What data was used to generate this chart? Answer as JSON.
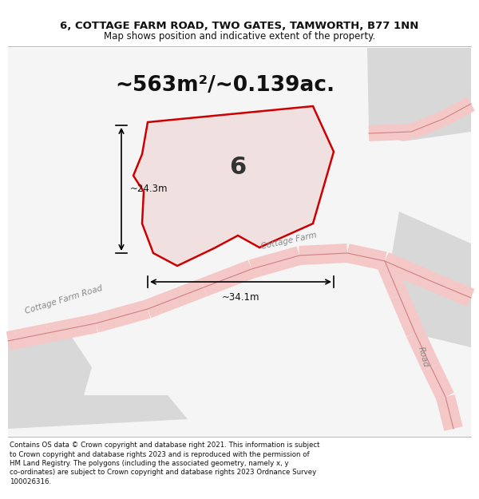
{
  "title_line1": "6, COTTAGE FARM ROAD, TWO GATES, TAMWORTH, B77 1NN",
  "title_line2": "Map shows position and indicative extent of the property.",
  "area_text": "~563m²/~0.139ac.",
  "footer_lines": [
    "Contains OS data © Crown copyright and database right 2021. This information is subject",
    "to Crown copyright and database rights 2023 and is reproduced with the permission of",
    "HM Land Registry. The polygons (including the associated geometry, namely x, y",
    "co-ordinates) are subject to Crown copyright and database rights 2023 Ordnance Survey",
    "100026316."
  ],
  "bg_color": "#ffffff",
  "property_fill": "#f0e0e0",
  "property_outline": "#cc0000",
  "property_label": "6",
  "dim_h": "~24.3m",
  "dim_w": "~34.1m",
  "road_label_left": "Cottage Farm Road",
  "road_label_mid": "Cottage Farm",
  "road_label_right": "Road"
}
